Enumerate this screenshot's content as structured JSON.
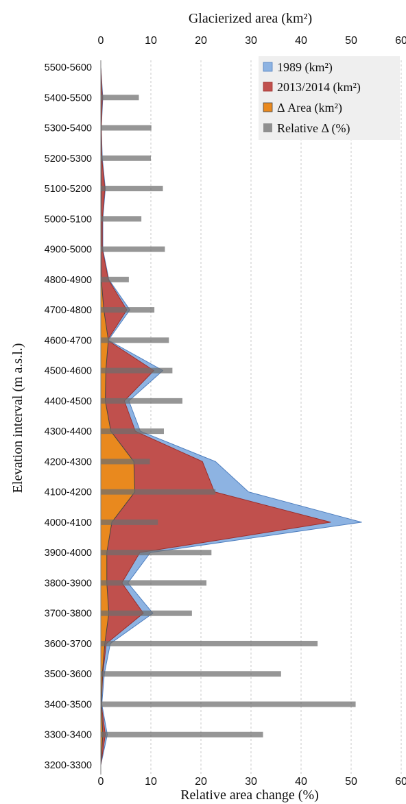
{
  "chart_data": {
    "type": "area",
    "title": "",
    "top_axis_label": "Glacierized area (km²)",
    "xlabel": "Relative area change (%)",
    "ylabel": "Elevation interval (m a.s.l.)",
    "xlim": [
      0,
      60
    ],
    "x_ticks": [
      "0",
      "10",
      "20",
      "30",
      "40",
      "50",
      "60"
    ],
    "grid": "vertical dashed",
    "legend_position": "top-right",
    "legend": [
      "1989 (km²)",
      "2013/2014 (km²)",
      "Δ Area (km²)",
      "Relative Δ (%)"
    ],
    "categories": [
      "5500-5600",
      "5400-5500",
      "5300-5400",
      "5200-5300",
      "5100-5200",
      "5000-5100",
      "4900-5000",
      "4800-4900",
      "4700-4800",
      "4600-4700",
      "4500-4600",
      "4400-4500",
      "4300-4400",
      "4200-4300",
      "4100-4200",
      "4000-4100",
      "3900-4000",
      "3800-3900",
      "3700-3800",
      "3600-3700",
      "3500-3600",
      "3400-3500",
      "3300-3400",
      "3200-3300"
    ],
    "series": [
      {
        "name": "1989 (km²)",
        "kind": "area",
        "color": "#8db3e2",
        "values": [
          0,
          0.4,
          0.1,
          0.3,
          0.9,
          0.4,
          0.4,
          1.6,
          5.8,
          1.5,
          12.4,
          5.6,
          7.9,
          22.9,
          29.5,
          52.1,
          9.9,
          5.4,
          10.4,
          1.9,
          0.7,
          0.2,
          1.3,
          0
        ]
      },
      {
        "name": "2013/2014 (km²)",
        "kind": "area",
        "color": "#c0504d",
        "values": [
          0,
          0.3,
          0.1,
          0.2,
          0.8,
          0.3,
          0.3,
          1.5,
          5.2,
          1.3,
          10.6,
          4.7,
          6.9,
          20.3,
          22.7,
          45.9,
          7.8,
          4.2,
          8.5,
          1.1,
          0.4,
          0.1,
          0.9,
          0
        ]
      },
      {
        "name": "Δ Area (km²)",
        "kind": "area",
        "color": "#e9891e",
        "values": [
          0,
          0.05,
          0.02,
          0.05,
          0.1,
          0.05,
          0.05,
          0.1,
          0.6,
          1.5,
          1.0,
          0.9,
          2.0,
          6.6,
          6.8,
          2.2,
          1.2,
          1.2,
          1.6,
          0.8,
          0.3,
          0.1,
          0.4,
          0
        ]
      },
      {
        "name": "Relative Δ (%)",
        "kind": "bar",
        "color": "#8f8f8f",
        "values": [
          0,
          7.6,
          10.1,
          10.0,
          12.4,
          8.1,
          12.8,
          5.6,
          10.7,
          13.6,
          14.3,
          16.3,
          12.6,
          9.8,
          22.9,
          11.4,
          22.1,
          21.1,
          18.2,
          43.3,
          36.0,
          50.9,
          32.4,
          0
        ]
      }
    ]
  }
}
